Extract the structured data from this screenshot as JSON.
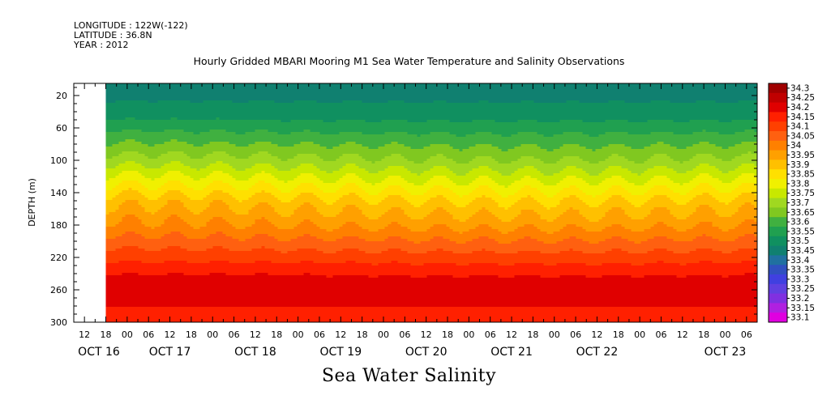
{
  "header": {
    "longitude": "LONGITUDE : 122W(-122)",
    "latitude": "LATITUDE : 36.8N",
    "year": "YEAR : 2012"
  },
  "chart_data": {
    "type": "heatmap",
    "title": "Hourly Gridded MBARI Mooring M1 Sea Water Temperature and Salinity Observations",
    "bottom_title": "Sea Water Salinity",
    "ylabel": "DEPTH (m)",
    "y_ticks": [
      "20",
      "60",
      "100",
      "140",
      "180",
      "220",
      "260",
      "300"
    ],
    "ylim": [
      5,
      300
    ],
    "y_reversed": true,
    "x_hour_ticks": [
      "12",
      "18",
      "00",
      "06",
      "12",
      "18",
      "00",
      "06",
      "12",
      "18",
      "00",
      "06",
      "12",
      "18",
      "00",
      "06",
      "12",
      "18",
      "00",
      "06",
      "12",
      "18",
      "00",
      "06",
      "12",
      "18",
      "00",
      "06",
      "12",
      "18",
      "00",
      "06"
    ],
    "x_day_labels": [
      "OCT 16",
      "OCT 17",
      "OCT 18",
      "OCT 19",
      "OCT 20",
      "OCT 21",
      "OCT 22",
      "OCT 23"
    ],
    "x_range_hours": [
      0,
      192
    ],
    "data_start_hour": 9,
    "colorbar_levels": [
      "34.3",
      "34.25",
      "34.2",
      "34.15",
      "34.1",
      "34.05",
      "34",
      "33.95",
      "33.9",
      "33.85",
      "33.8",
      "33.75",
      "33.7",
      "33.65",
      "33.6",
      "33.55",
      "33.5",
      "33.45",
      "33.4",
      "33.35",
      "33.3",
      "33.25",
      "33.2",
      "33.15",
      "33.1"
    ],
    "colorbar_colors": [
      "#a00000",
      "#c00000",
      "#e00000",
      "#ff2000",
      "#ff4000",
      "#ff6010",
      "#ff8000",
      "#ffa000",
      "#ffc000",
      "#ffe000",
      "#f0f000",
      "#c8e800",
      "#a0d820",
      "#80c820",
      "#40b040",
      "#20a050",
      "#109060",
      "#108070",
      "#2070a0",
      "#3050c0",
      "#4040e0",
      "#6040e0",
      "#8030e0",
      "#b020e0",
      "#e000e0"
    ],
    "salinity_profile": [
      {
        "depth": 5,
        "value": 33.47
      },
      {
        "depth": 40,
        "value": 33.52
      },
      {
        "depth": 70,
        "value": 33.62
      },
      {
        "depth": 100,
        "value": 33.72
      },
      {
        "depth": 125,
        "value": 33.82
      },
      {
        "depth": 150,
        "value": 33.92
      },
      {
        "depth": 180,
        "value": 34.0
      },
      {
        "depth": 210,
        "value": 34.1
      },
      {
        "depth": 240,
        "value": 34.2
      },
      {
        "depth": 260,
        "value": 34.23
      },
      {
        "depth": 285,
        "value": 34.19
      },
      {
        "depth": 300,
        "value": 34.17
      }
    ]
  }
}
